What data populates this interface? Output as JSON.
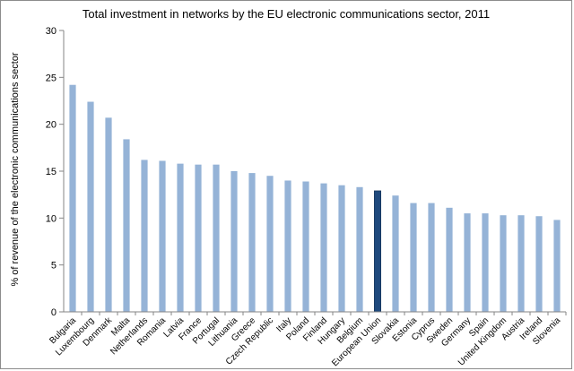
{
  "chart_data": {
    "type": "bar",
    "title": "Total investment in networks by the EU electronic communications sector, 2011",
    "xlabel": "",
    "ylabel": "% of revenue of the electronic communications sector",
    "ylim": [
      0,
      30
    ],
    "yticks": [
      0,
      5,
      10,
      15,
      20,
      25,
      30
    ],
    "grid": false,
    "legend": "none",
    "categories": [
      "Bulgaria",
      "Luxembourg",
      "Denmark",
      "Malta",
      "Netherlands",
      "Romania",
      "Latvia",
      "France",
      "Portugal",
      "Lithuania",
      "Greece",
      "Czech Republic",
      "Italy",
      "Poland",
      "Finland",
      "Hungary",
      "Belgium",
      "European Union",
      "Slovakia",
      "Estonia",
      "Cyprus",
      "Sweden",
      "Germany",
      "Spain",
      "United Kingdom",
      "Austria",
      "Ireland",
      "Slovenia"
    ],
    "values": [
      24.2,
      22.4,
      20.7,
      18.4,
      16.2,
      16.1,
      15.8,
      15.7,
      15.7,
      15.0,
      14.8,
      14.5,
      14.0,
      13.9,
      13.7,
      13.5,
      13.3,
      12.9,
      12.4,
      11.6,
      11.6,
      11.1,
      10.5,
      10.5,
      10.3,
      10.3,
      10.2,
      9.8
    ],
    "highlight": "European Union",
    "colors": {
      "bar": "#95b3d7",
      "highlight_bar": "#1f497d",
      "axis": "#868686"
    }
  }
}
